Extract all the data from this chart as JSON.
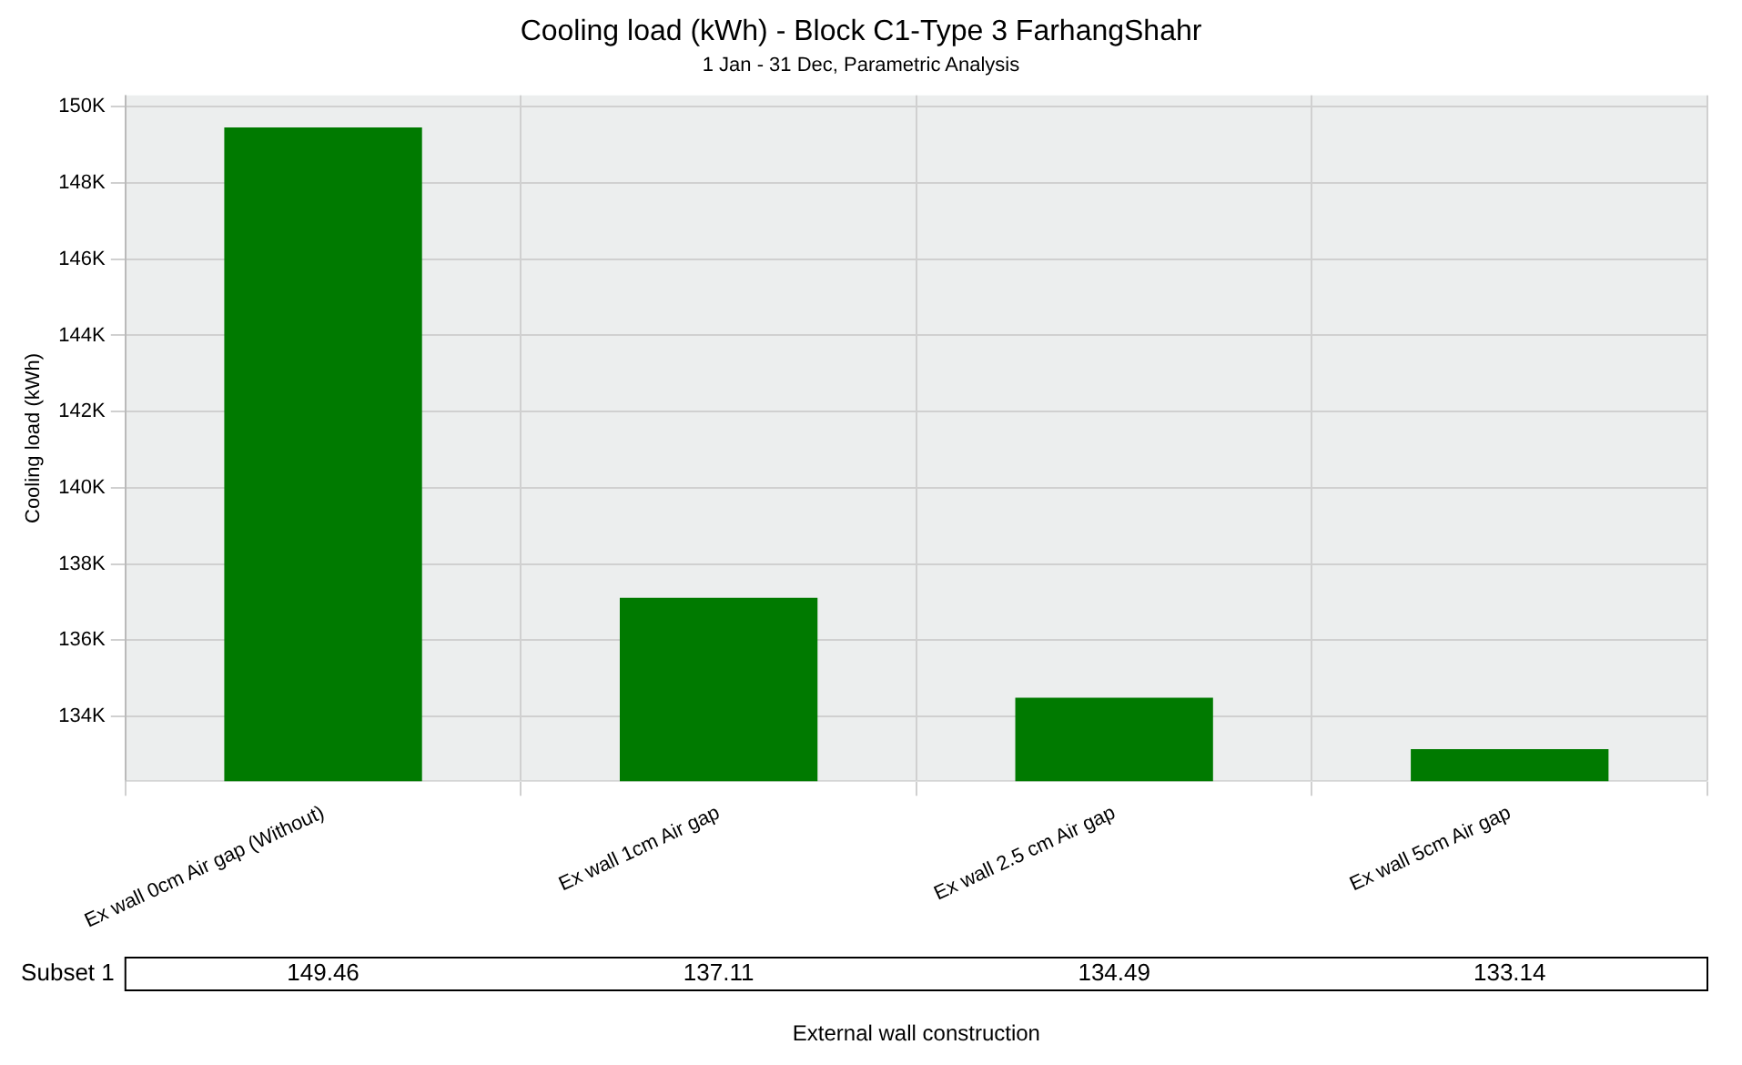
{
  "chart_data": {
    "type": "bar",
    "title": "Cooling load (kWh) - Block C1-Type 3 FarhangShahr",
    "subtitle": "1 Jan - 31 Dec, Parametric Analysis",
    "ylabel": "Cooling load (kWh)",
    "xlabel": "External wall construction",
    "categories": [
      "Ex wall 0cm Air gap (Without)",
      "Ex wall 1cm Air gap",
      "Ex wall 2.5 cm Air gap",
      "Ex wall 5cm Air gap"
    ],
    "series": [
      {
        "name": "Subset 1",
        "color": "#007a00",
        "values": [
          149.46,
          137.11,
          134.49,
          133.14
        ],
        "value_labels": [
          "149.46",
          "137.11",
          "134.49",
          "133.14"
        ]
      }
    ],
    "ylim": [
      132.3,
      150.3
    ],
    "yticks": [
      {
        "value": 134,
        "label": "134K"
      },
      {
        "value": 136,
        "label": "136K"
      },
      {
        "value": 138,
        "label": "138K"
      },
      {
        "value": 140,
        "label": "140K"
      },
      {
        "value": 142,
        "label": "142K"
      },
      {
        "value": 144,
        "label": "144K"
      },
      {
        "value": 146,
        "label": "146K"
      },
      {
        "value": 148,
        "label": "148K"
      },
      {
        "value": 150,
        "label": "150K"
      }
    ],
    "grid": true,
    "legend": false
  }
}
